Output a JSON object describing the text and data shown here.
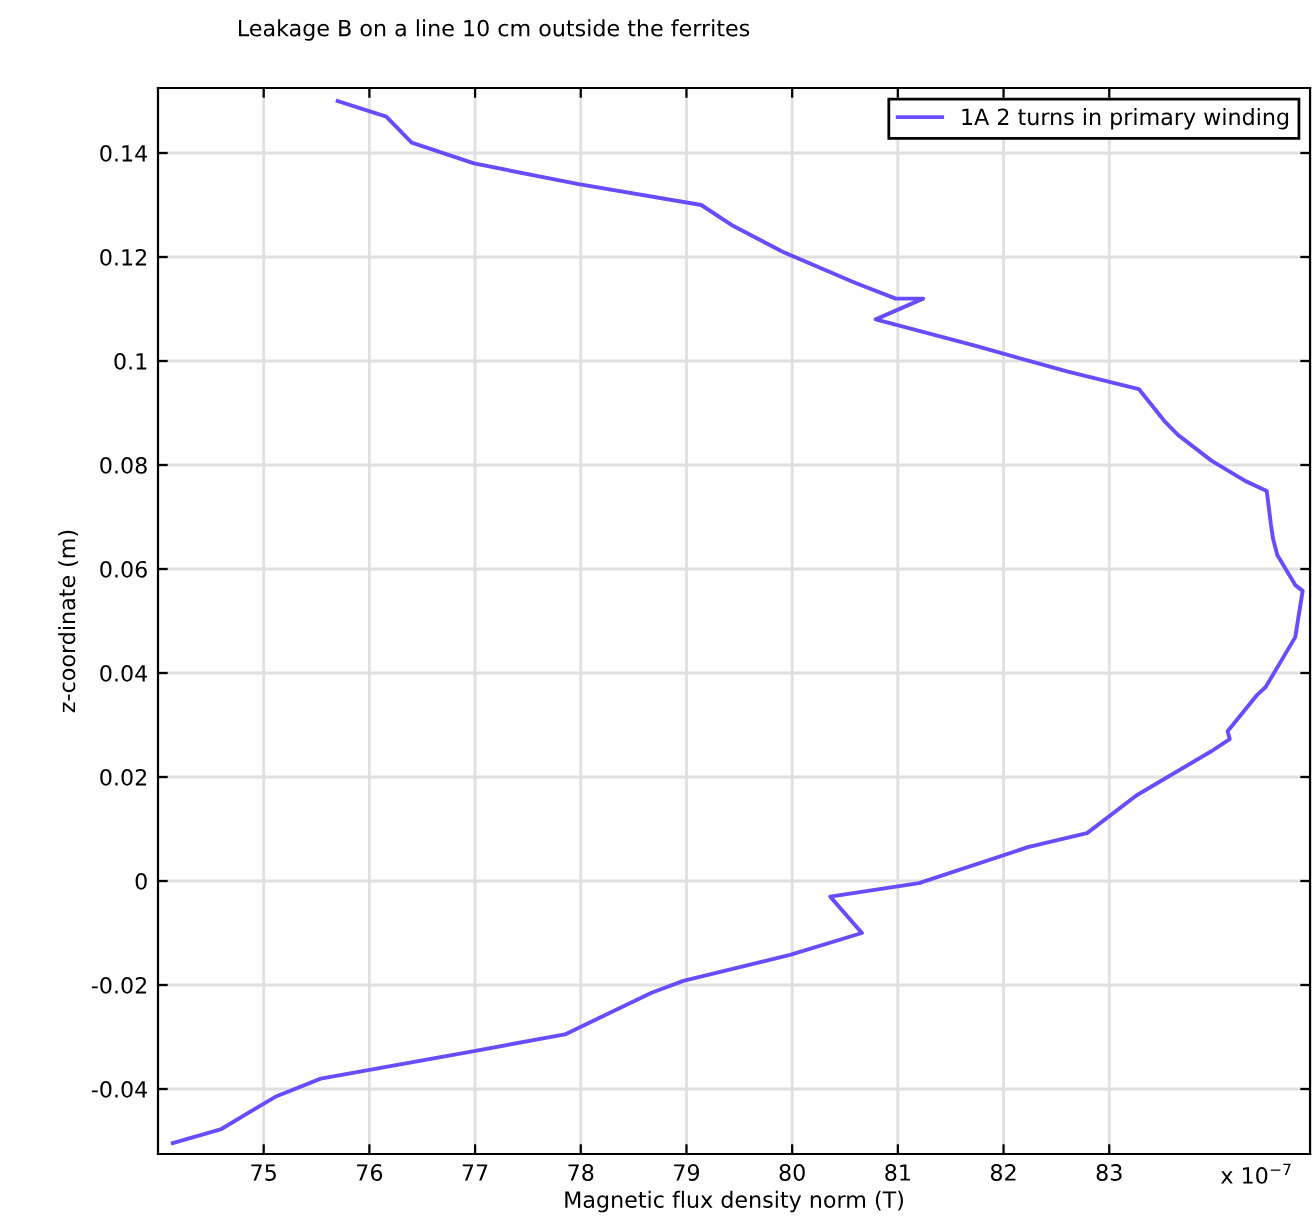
{
  "chart_data": {
    "type": "line",
    "title": "Leakage B on a line 10 cm outside the ferrites",
    "xlabel": "Magnetic flux density norm (T)",
    "ylabel": "z-coordinate (m)",
    "annotations": [
      "x 10$^{−7}$"
    ],
    "series": [
      {
        "name": "1A 2 turns in primary winding",
        "color": "#6a4cff",
        "x": [
          75.7,
          76.16,
          76.4,
          76.99,
          77.98,
          79.14,
          79.44,
          79.91,
          80.6,
          80.98,
          81.24,
          80.79,
          81.72,
          82.6,
          83.28,
          83.52,
          83.65,
          83.97,
          84.29,
          84.49,
          84.53,
          84.55,
          84.59,
          84.76,
          84.83,
          84.76,
          84.48,
          84.4,
          84.12,
          84.14,
          83.97,
          83.26,
          82.79,
          82.23,
          81.2,
          80.36,
          80.66,
          79.98,
          78.97,
          78.67,
          77.85,
          76.99,
          75.54,
          75.11,
          74.6,
          74.14
        ],
        "values": [
          0.15,
          0.147,
          0.142,
          0.138,
          0.134,
          0.13,
          0.126,
          0.121,
          0.115,
          0.112,
          0.112,
          0.108,
          0.103,
          0.098,
          0.0946,
          0.0885,
          0.0858,
          0.0808,
          0.0769,
          0.075,
          0.0685,
          0.0658,
          0.0627,
          0.0569,
          0.0558,
          0.0469,
          0.0373,
          0.0358,
          0.0288,
          0.0273,
          0.025,
          0.0165,
          0.0092,
          0.0065,
          -0.0004,
          -0.003,
          -0.01,
          -0.0142,
          -0.0192,
          -0.0215,
          -0.0295,
          -0.0327,
          -0.038,
          -0.0415,
          -0.0477,
          -0.0504
        ]
      }
    ],
    "xlim": [
      74,
      84.9
    ],
    "ylim": [
      -0.0525,
      0.1525
    ],
    "xticks": [
      75,
      76,
      77,
      78,
      79,
      80,
      81,
      82,
      83
    ],
    "yticks": [
      -0.04,
      -0.02,
      0,
      0.02,
      0.04,
      0.06,
      0.08,
      0.1,
      0.12,
      0.14
    ],
    "grid": true,
    "legend": "top right",
    "marker": "none",
    "line_style": "solid"
  }
}
